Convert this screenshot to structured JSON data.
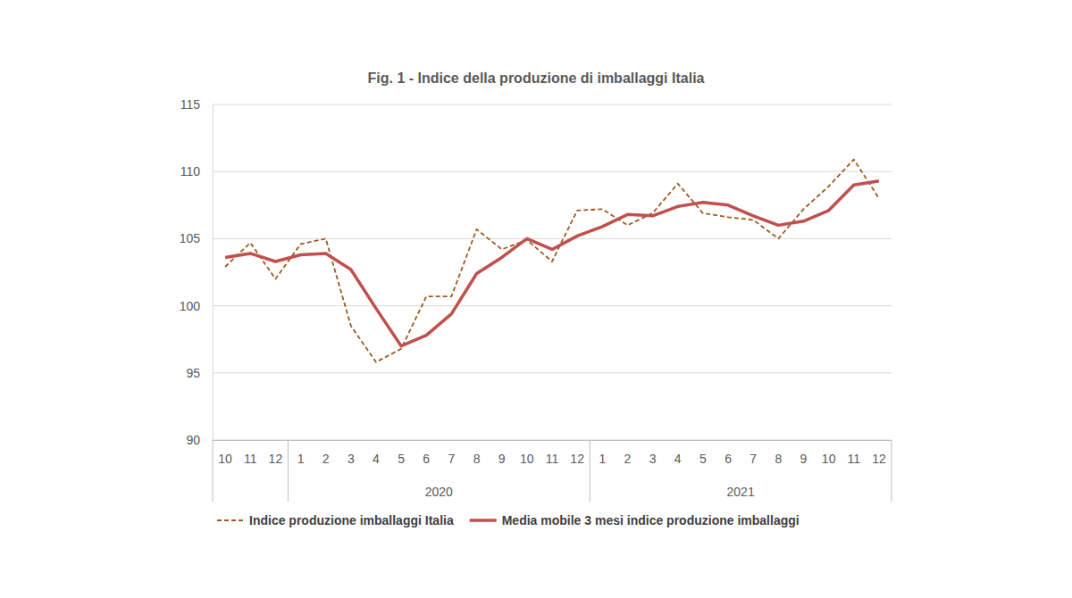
{
  "chart_data": {
    "type": "line",
    "title": "Fig. 1 - Indice della produzione di imballaggi Italia",
    "categories": [
      "10",
      "11",
      "12",
      "1",
      "2",
      "3",
      "4",
      "5",
      "6",
      "7",
      "8",
      "9",
      "10",
      "11",
      "12",
      "1",
      "2",
      "3",
      "4",
      "5",
      "6",
      "7",
      "8",
      "9",
      "10",
      "11",
      "12"
    ],
    "category_groups": [
      {
        "label": null,
        "size": 3
      },
      {
        "label": "2020",
        "size": 12
      },
      {
        "label": "2021",
        "size": 12
      }
    ],
    "series": [
      {
        "name": "Indice produzione imballaggi Italia",
        "color": "#9c5a1e",
        "line_style": "dashed",
        "values": [
          102.9,
          104.7,
          102.0,
          104.6,
          105.0,
          98.5,
          95.8,
          96.8,
          100.7,
          100.7,
          105.7,
          104.2,
          104.9,
          103.3,
          107.1,
          107.2,
          106.0,
          106.9,
          109.1,
          106.9,
          106.6,
          106.4,
          105.0,
          107.2,
          108.9,
          110.9,
          108.0
        ]
      },
      {
        "name": "Media mobile 3 mesi indice produzione imballaggi",
        "color": "#c0504d",
        "line_style": "solid",
        "values": [
          103.6,
          103.9,
          103.3,
          103.8,
          103.9,
          102.7,
          99.8,
          97.0,
          97.8,
          99.4,
          102.4,
          103.6,
          105.0,
          104.2,
          105.2,
          105.9,
          106.8,
          106.7,
          107.4,
          107.7,
          107.5,
          106.7,
          106.0,
          106.3,
          107.1,
          109.0,
          109.3
        ]
      }
    ],
    "ylim": [
      90,
      115
    ],
    "yticks": [
      90,
      95,
      100,
      105,
      110,
      115
    ],
    "grid": true,
    "legend": "bottom"
  }
}
